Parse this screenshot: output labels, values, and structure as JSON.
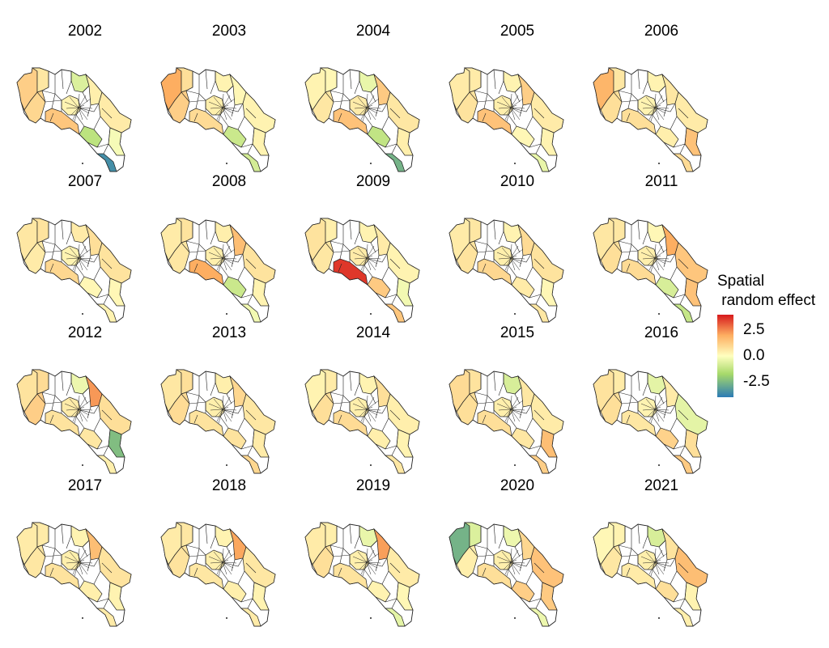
{
  "legend": {
    "title": "Spatial\n random effect",
    "ticks": [
      {
        "label": "2.5",
        "value": 2.5
      },
      {
        "label": "0.0",
        "value": 0.0
      },
      {
        "label": "-2.5",
        "value": -2.5
      }
    ],
    "range": [
      -4,
      4
    ],
    "colors": [
      "#d7191c",
      "#fdae61",
      "#ffffbf",
      "#a6d96a",
      "#2c7bb6"
    ]
  },
  "colors": {
    "no_data": "#ffffff",
    "outline": "#222222"
  },
  "years": [
    {
      "label": "2002",
      "effects": {
        "nw_coast": 1.2,
        "guanacaste": 0.6,
        "north": -0.8,
        "nicoya": 1.0,
        "pacific_central": 1.4,
        "central_valley": 0.3,
        "north_east": 0.4,
        "caribbean": 0.5,
        "south_pacific": -1.5,
        "osa": -3.6,
        "south_east": -0.2
      }
    },
    {
      "label": "2003",
      "effects": {
        "nw_coast": 2.0,
        "guanacaste": 0.8,
        "north": 0.3,
        "nicoya": 1.2,
        "pacific_central": 0.9,
        "central_valley": 0.4,
        "north_east": 0.2,
        "caribbean": 0.3,
        "south_pacific": -1.2,
        "osa": -1.0,
        "south_east": 0.3
      }
    },
    {
      "label": "2004",
      "effects": {
        "nw_coast": 0.3,
        "guanacaste": 0.2,
        "north": -0.5,
        "nicoya": 0.6,
        "pacific_central": 1.5,
        "central_valley": 0.5,
        "north_east": 1.3,
        "caribbean": 0.6,
        "south_pacific": -1.4,
        "osa": -2.8,
        "south_east": 0.4
      }
    },
    {
      "label": "2005",
      "effects": {
        "nw_coast": 0.5,
        "guanacaste": 0.5,
        "north": 0.3,
        "nicoya": 0.7,
        "pacific_central": 1.5,
        "central_valley": 0.4,
        "north_east": 1.2,
        "caribbean": 0.5,
        "south_pacific": 0.2,
        "osa": -0.5,
        "south_east": 0.3
      }
    },
    {
      "label": "2006",
      "effects": {
        "nw_coast": 1.8,
        "guanacaste": 0.6,
        "north": 0.3,
        "nicoya": 0.8,
        "pacific_central": 0.8,
        "central_valley": 0.3,
        "north_east": 0.6,
        "caribbean": 0.5,
        "south_pacific": 0.4,
        "osa": 0.9,
        "south_east": 1.5
      }
    },
    {
      "label": "2007",
      "effects": {
        "nw_coast": 0.6,
        "guanacaste": 0.7,
        "north": 0.5,
        "nicoya": 0.5,
        "pacific_central": 1.0,
        "central_valley": 0.3,
        "north_east": 0.8,
        "caribbean": 0.7,
        "south_pacific": 0.2,
        "osa": 0.3,
        "south_east": 0.2
      }
    },
    {
      "label": "2008",
      "effects": {
        "nw_coast": 0.5,
        "guanacaste": 0.7,
        "north": 0.4,
        "nicoya": 0.6,
        "pacific_central": 2.0,
        "central_valley": 0.4,
        "north_east": 1.6,
        "caribbean": 0.7,
        "south_pacific": -1.2,
        "osa": -0.3,
        "south_east": 0.3
      }
    },
    {
      "label": "2009",
      "effects": {
        "nw_coast": 0.7,
        "guanacaste": 0.4,
        "north": 0.3,
        "nicoya": 0.6,
        "pacific_central": 3.6,
        "central_valley": 0.5,
        "north_east": 0.5,
        "caribbean": 0.3,
        "south_pacific": 1.3,
        "osa": 1.4,
        "south_east": -0.3
      }
    },
    {
      "label": "2010",
      "effects": {
        "nw_coast": 0.5,
        "guanacaste": 0.6,
        "north": 0.3,
        "nicoya": 0.7,
        "pacific_central": 1.0,
        "central_valley": 0.4,
        "north_east": 0.9,
        "caribbean": 0.7,
        "south_pacific": 0.5,
        "osa": 0.6,
        "south_east": 0.2
      }
    },
    {
      "label": "2011",
      "effects": {
        "nw_coast": 0.6,
        "guanacaste": 0.6,
        "north": 0.2,
        "nicoya": 0.8,
        "pacific_central": 0.9,
        "central_valley": 0.4,
        "north_east": 2.0,
        "caribbean": 1.4,
        "south_pacific": -0.9,
        "osa": -1.3,
        "south_east": 1.5
      }
    },
    {
      "label": "2012",
      "effects": {
        "nw_coast": 0.7,
        "guanacaste": 0.9,
        "north": -0.4,
        "nicoya": 1.2,
        "pacific_central": 0.7,
        "central_valley": 0.5,
        "north_east": 2.3,
        "caribbean": 0.8,
        "south_pacific": 0.6,
        "osa": 0.4,
        "south_east": -2.6
      }
    },
    {
      "label": "2013",
      "effects": {
        "nw_coast": 0.6,
        "guanacaste": 0.8,
        "north": 0.4,
        "nicoya": 0.9,
        "pacific_central": 0.7,
        "central_valley": 0.4,
        "north_east": 1.0,
        "caribbean": 0.6,
        "south_pacific": 0.7,
        "osa": 1.0,
        "south_east": 0.5
      }
    },
    {
      "label": "2014",
      "effects": {
        "nw_coast": 0.3,
        "guanacaste": 0.5,
        "north": 0.3,
        "nicoya": 0.8,
        "pacific_central": 0.9,
        "central_valley": 0.4,
        "north_east": 0.8,
        "caribbean": 0.4,
        "south_pacific": 0.4,
        "osa": 0.6,
        "south_east": 0.3
      }
    },
    {
      "label": "2015",
      "effects": {
        "nw_coast": 0.9,
        "guanacaste": 0.7,
        "north": -0.9,
        "nicoya": 0.8,
        "pacific_central": 0.8,
        "central_valley": 0.4,
        "north_east": 0.6,
        "caribbean": 0.5,
        "south_pacific": 0.6,
        "osa": 1.2,
        "south_east": 1.6
      }
    },
    {
      "label": "2016",
      "effects": {
        "nw_coast": 0.7,
        "guanacaste": 0.5,
        "north": -0.6,
        "nicoya": 0.8,
        "pacific_central": 0.6,
        "central_valley": 0.3,
        "north_east": 0.5,
        "caribbean": -0.6,
        "south_pacific": 1.1,
        "osa": 1.3,
        "south_east": 0.8
      }
    },
    {
      "label": "2017",
      "effects": {
        "nw_coast": 0.5,
        "guanacaste": 0.5,
        "north": 0.3,
        "nicoya": 0.6,
        "pacific_central": 0.7,
        "central_valley": 0.4,
        "north_east": 1.6,
        "caribbean": 0.7,
        "south_pacific": 0.4,
        "osa": 0.5,
        "south_east": 0.3
      }
    },
    {
      "label": "2018",
      "effects": {
        "nw_coast": 0.5,
        "guanacaste": 0.6,
        "north": 0.3,
        "nicoya": 0.7,
        "pacific_central": 0.6,
        "central_valley": 0.4,
        "north_east": 2.1,
        "caribbean": 0.6,
        "south_pacific": 0.4,
        "osa": 0.5,
        "south_east": 0.3
      }
    },
    {
      "label": "2019",
      "effects": {
        "nw_coast": 0.5,
        "guanacaste": 0.4,
        "north": -0.5,
        "nicoya": 0.8,
        "pacific_central": 0.7,
        "central_valley": 0.4,
        "north_east": 2.2,
        "caribbean": 0.5,
        "south_pacific": 0.3,
        "osa": -0.6,
        "south_east": 0.2
      }
    },
    {
      "label": "2020",
      "effects": {
        "nw_coast": -2.8,
        "guanacaste": -0.8,
        "north": -0.4,
        "nicoya": 0.4,
        "pacific_central": 0.8,
        "central_valley": 0.4,
        "north_east": 1.0,
        "caribbean": 1.5,
        "south_pacific": 1.2,
        "osa": -0.4,
        "south_east": 1.3
      }
    },
    {
      "label": "2021",
      "effects": {
        "nw_coast": 0.2,
        "guanacaste": 0.3,
        "north": -0.9,
        "nicoya": 0.6,
        "pacific_central": 0.5,
        "central_valley": 0.4,
        "north_east": 0.7,
        "caribbean": 1.6,
        "south_pacific": 0.8,
        "osa": 0.4,
        "south_east": 0.3
      }
    }
  ]
}
